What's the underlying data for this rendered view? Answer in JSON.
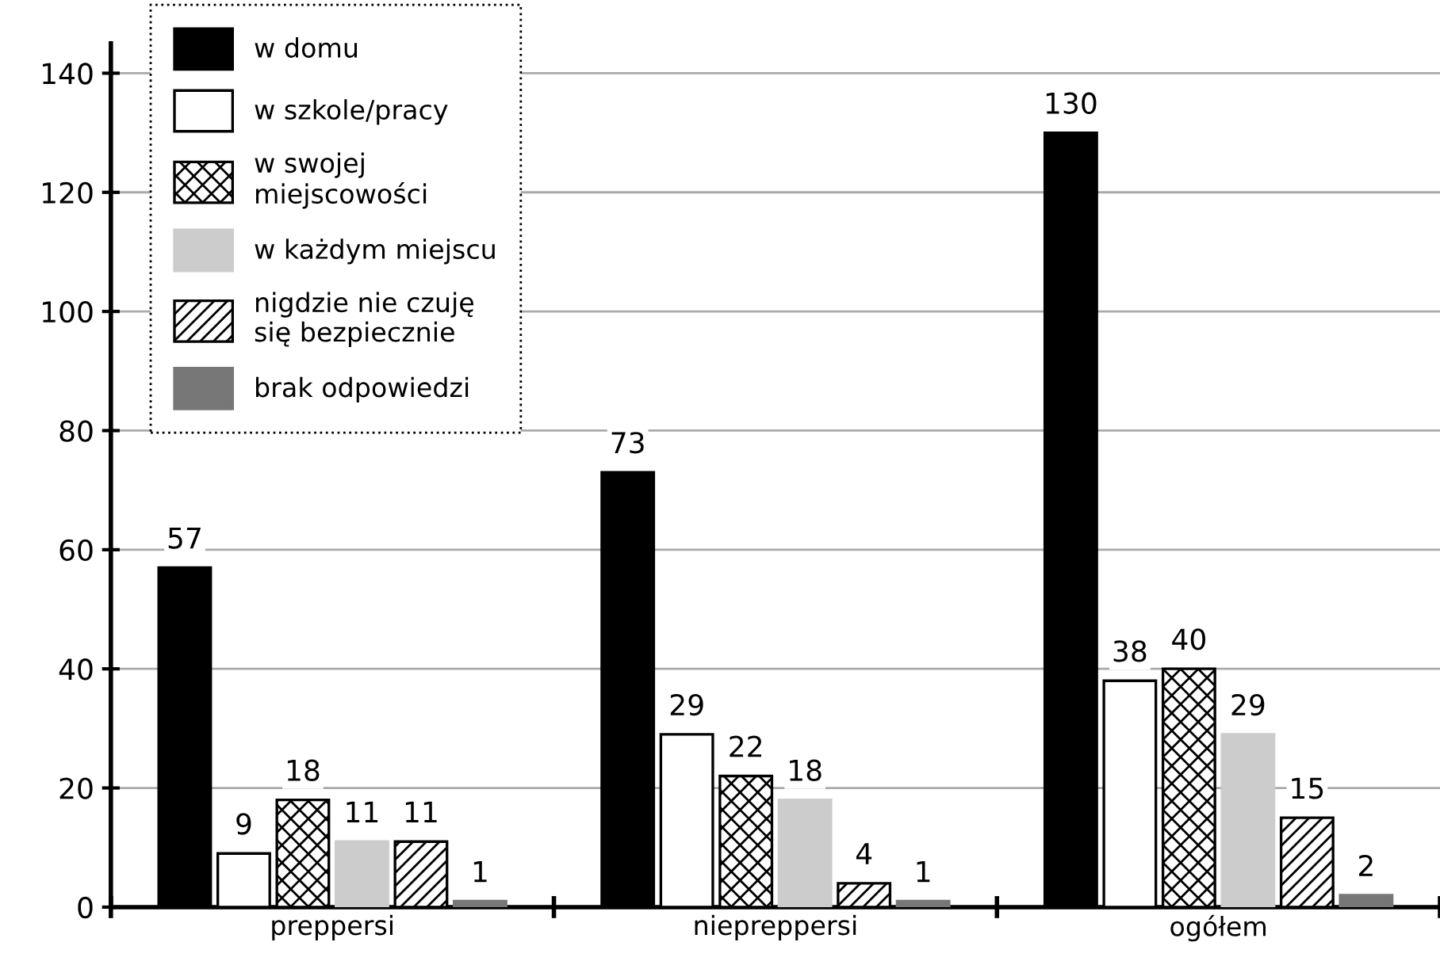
{
  "chart_data": {
    "type": "bar",
    "categories": [
      "preppersi",
      "niepreppersi",
      "ogółem"
    ],
    "series": [
      {
        "name": "w domu",
        "color": "#000000",
        "values": [
          57,
          73,
          130
        ]
      },
      {
        "name": "w szkole/pracy",
        "color": "#ffffff",
        "values": [
          9,
          29,
          38
        ]
      },
      {
        "name": "w swojej\nmiejscowości",
        "color": "#000000",
        "values": [
          18,
          22,
          40
        ]
      },
      {
        "name": "w każdym miejscu",
        "color": "#cccccc",
        "values": [
          11,
          18,
          29
        ]
      },
      {
        "name": "nigdzie nie czuję\nsię bezpiecznie",
        "color": "#000000",
        "values": [
          11,
          4,
          15
        ]
      },
      {
        "name": "brak odpowiedzi",
        "color": "#777777",
        "values": [
          1,
          1,
          2
        ]
      }
    ],
    "ylim": [
      0,
      145
    ],
    "yticks": [
      0,
      20,
      40,
      60,
      80,
      100,
      120,
      140
    ],
    "grid": "y",
    "legend": "top left",
    "data_labels": true
  }
}
